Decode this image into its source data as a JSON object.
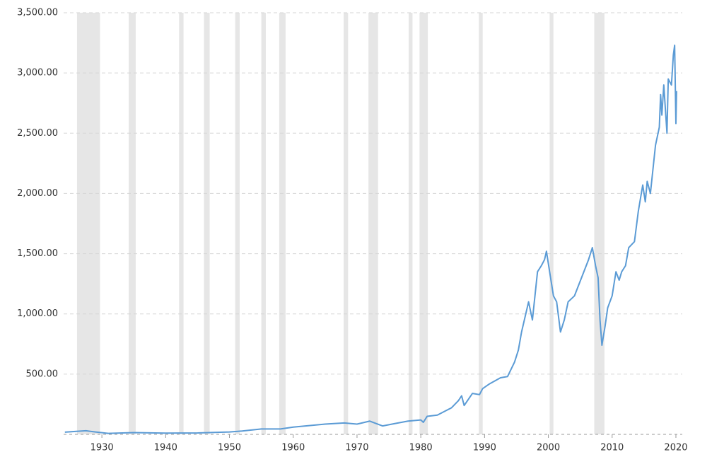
{
  "chart_data": {
    "type": "line",
    "color": "#5b9bd5",
    "band_color": "#e6e6e6",
    "grid": true,
    "xlim": [
      1924,
      2021
    ],
    "xticks": [
      1930,
      1940,
      1950,
      1960,
      1970,
      1980,
      1990,
      2000,
      2010,
      2020
    ],
    "ylim": [
      0,
      3500
    ],
    "yticks": [
      {
        "value": 500,
        "label": "500.00"
      },
      {
        "value": 1000,
        "label": "1,000.00"
      },
      {
        "value": 1500,
        "label": "1,500.00"
      },
      {
        "value": 2000,
        "label": "2,000.00"
      },
      {
        "value": 2500,
        "label": "2,500.00"
      },
      {
        "value": 3000,
        "label": "3,000.00"
      },
      {
        "value": 3500,
        "label": "3,500.00"
      }
    ],
    "recessions": [
      [
        1926.1,
        1929.7
      ],
      [
        1934.2,
        1935.3
      ],
      [
        1942.1,
        1942.8
      ],
      [
        1946.0,
        1946.9
      ],
      [
        1950.9,
        1951.6
      ],
      [
        1955.0,
        1955.7
      ],
      [
        1957.8,
        1958.8
      ],
      [
        1967.9,
        1968.6
      ],
      [
        1971.8,
        1973.3
      ],
      [
        1978.1,
        1978.7
      ],
      [
        1979.8,
        1981.1
      ],
      [
        1989.1,
        1989.7
      ],
      [
        2000.2,
        2000.8
      ],
      [
        2007.2,
        2008.8
      ]
    ],
    "x": [
      1924.2,
      1926,
      1927.5,
      1929,
      1931,
      1935,
      1940,
      1945,
      1950,
      1952,
      1955,
      1958,
      1960,
      1965,
      1968,
      1970,
      1972,
      1974,
      1976,
      1978,
      1980,
      1980.4,
      1981,
      1982.6,
      1984.8,
      1985.9,
      1986.4,
      1986.8,
      1988.1,
      1989.2,
      1989.7,
      1990.8,
      1992.5,
      1993.6,
      1994.7,
      1995.3,
      1995.8,
      1996.9,
      1997.5,
      1998.3,
      1998.9,
      1999.4,
      1999.7,
      2000.2,
      2000.8,
      2001.3,
      2001.9,
      2002.5,
      2003.1,
      2004.1,
      2005.2,
      2006.3,
      2006.9,
      2007.4,
      2007.8,
      2008.1,
      2008.4,
      2008.9,
      2009.3,
      2010.0,
      2010.6,
      2011.1,
      2011.5,
      2012.1,
      2012.6,
      2013.5,
      2014.1,
      2014.8,
      2015.2,
      2015.5,
      2016.0,
      2016.8,
      2017.4,
      2017.6,
      2017.8,
      2018.1,
      2018.6,
      2018.8,
      2019.3,
      2019.6,
      2019.8,
      2020.0,
      2020.1
    ],
    "values": [
      18,
      25,
      30,
      20,
      8,
      15,
      10,
      12,
      20,
      28,
      45,
      45,
      60,
      85,
      95,
      85,
      110,
      70,
      90,
      110,
      120,
      100,
      150,
      160,
      220,
      280,
      320,
      240,
      340,
      330,
      380,
      420,
      470,
      480,
      600,
      700,
      850,
      1100,
      950,
      1350,
      1400,
      1450,
      1520,
      1350,
      1150,
      1100,
      850,
      950,
      1100,
      1150,
      1300,
      1450,
      1550,
      1400,
      1300,
      950,
      740,
      900,
      1050,
      1150,
      1350,
      1280,
      1350,
      1400,
      1550,
      1600,
      1850,
      2070,
      1930,
      2100,
      2000,
      2400,
      2550,
      2820,
      2650,
      2900,
      2500,
      2950,
      2900,
      3150,
      3230,
      2580,
      2850
    ]
  }
}
